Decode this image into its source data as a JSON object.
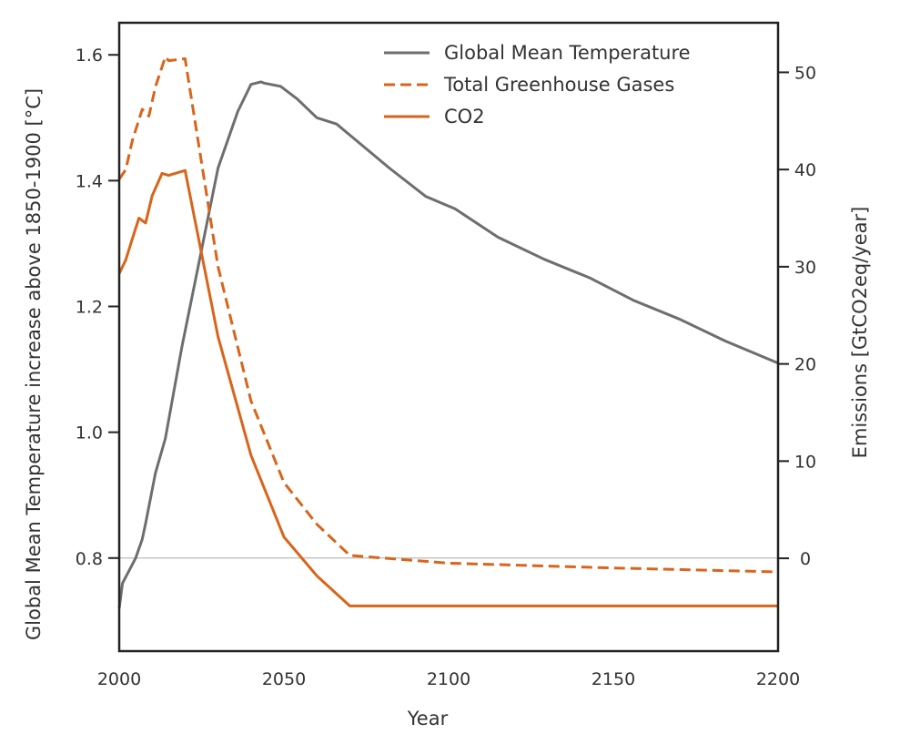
{
  "chart_data": {
    "type": "line",
    "title": "",
    "xlabel": "Year",
    "ylabel_left": "Global Mean Temperature increase above 1850-1900 [°C]",
    "ylabel_right": "Emissions [GtCO2eq/year]",
    "xlim": [
      2000,
      2200
    ],
    "ylim_left": [
      0.652,
      1.651
    ],
    "ylim_right": [
      -9.55,
      55.1
    ],
    "x_ticks": [
      "2000",
      "2050",
      "2100",
      "2150",
      "2200"
    ],
    "y_ticks_left": [
      "0.8",
      "1.0",
      "1.2",
      "1.4",
      "1.6"
    ],
    "y_ticks_right": [
      "0",
      "10",
      "20",
      "30",
      "40",
      "50"
    ],
    "reference_line_left": 0.8,
    "grid": false,
    "legend_placement": "top-right",
    "series": [
      {
        "name": "Global Mean Temperature",
        "axis": "left",
        "color": "#6e6e6e",
        "style": "solid",
        "x": [
          2000,
          2001,
          2003,
          2005,
          2007,
          2008,
          2011,
          2014,
          2019,
          2025,
          2030,
          2036,
          2040,
          2043,
          2044,
          2049,
          2054,
          2060,
          2066,
          2074,
          2082,
          2093,
          2102,
          2115,
          2129,
          2143,
          2156,
          2170,
          2184,
          2200
        ],
        "y": [
          0.72,
          0.76,
          0.78,
          0.8,
          0.83,
          0.855,
          0.935,
          0.99,
          1.135,
          1.29,
          1.42,
          1.51,
          1.553,
          1.557,
          1.555,
          1.55,
          1.53,
          1.5,
          1.49,
          1.455,
          1.42,
          1.375,
          1.355,
          1.31,
          1.275,
          1.245,
          1.21,
          1.18,
          1.145,
          1.11
        ]
      },
      {
        "name": "Total Greenhouse Gases",
        "axis": "right",
        "color": "#d8651a",
        "style": "dashed",
        "x": [
          2000,
          2002,
          2004,
          2007,
          2009,
          2011,
          2014,
          2015,
          2020,
          2030,
          2040,
          2050,
          2060,
          2070,
          2100,
          2150,
          2200
        ],
        "y": [
          39,
          40,
          43,
          46.2,
          45.5,
          48.5,
          51.6,
          51.2,
          51.4,
          30,
          16.2,
          7.8,
          3.5,
          0.3,
          -0.5,
          -1.0,
          -1.4
        ]
      },
      {
        "name": "CO2",
        "axis": "right",
        "color": "#d8651a",
        "style": "solid",
        "x": [
          2000,
          2002,
          2004,
          2006,
          2008,
          2010,
          2013,
          2015,
          2020,
          2030,
          2040,
          2050,
          2060,
          2070,
          2200
        ],
        "y": [
          29.3,
          30.7,
          32.9,
          35,
          34.5,
          37.3,
          39.6,
          39.4,
          39.9,
          22.8,
          10.6,
          2.2,
          -1.8,
          -4.9,
          -4.9
        ]
      }
    ]
  }
}
